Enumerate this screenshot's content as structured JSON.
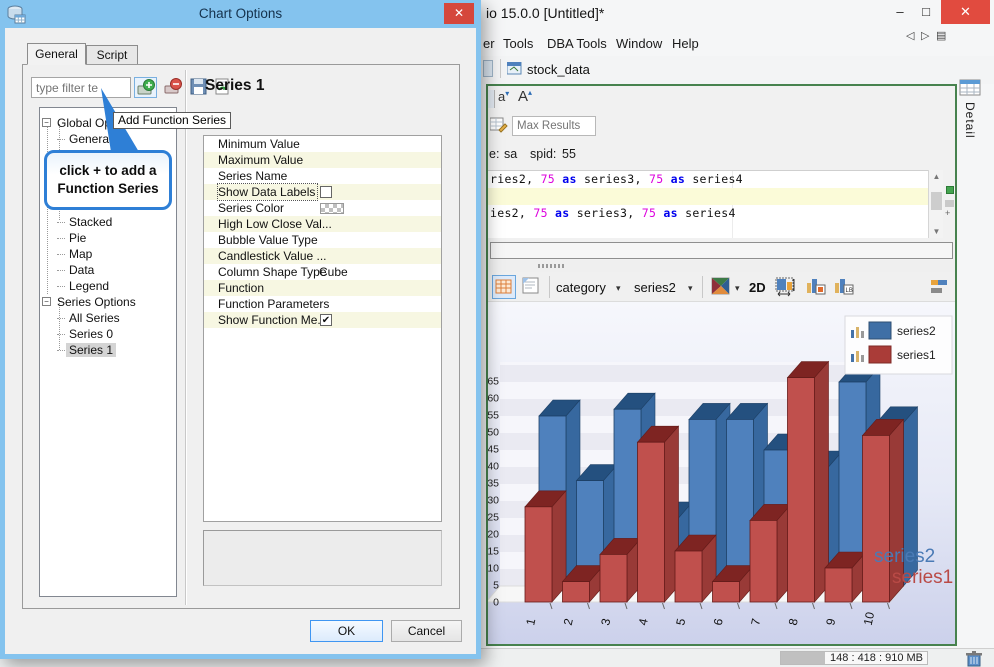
{
  "dialog": {
    "title": "Chart Options",
    "tabs": [
      {
        "label": "General",
        "active": true
      },
      {
        "label": "Script",
        "active": false
      }
    ],
    "filter_text": "type filter te",
    "tooltip_text": "Add Function Series",
    "callout_line1": "click + to add a",
    "callout_line2": "Function Series",
    "tree": [
      {
        "label": "Global Options",
        "level": 0,
        "expander": true
      },
      {
        "label": "General",
        "level": 1
      },
      {
        "label": "Stacked",
        "level": 1
      },
      {
        "label": "Pie",
        "level": 1
      },
      {
        "label": "Map",
        "level": 1
      },
      {
        "label": "Data",
        "level": 1
      },
      {
        "label": "Legend",
        "level": 1
      },
      {
        "label": "Series Options",
        "level": 0,
        "expander": true
      },
      {
        "label": "All Series",
        "level": 1
      },
      {
        "label": "Series 0",
        "level": 1
      },
      {
        "label": "Series 1",
        "level": 1,
        "selected": true
      }
    ],
    "panel_heading": "Series 1",
    "properties": [
      {
        "label": "Minimum Value",
        "value": "",
        "control": "text"
      },
      {
        "label": "Maximum Value",
        "value": "",
        "control": "text"
      },
      {
        "label": "Series Name",
        "value": "",
        "control": "text"
      },
      {
        "label": "Show Data Labels",
        "control": "checkbox",
        "checked": false,
        "focused": true
      },
      {
        "label": "Series Color",
        "control": "swatch"
      },
      {
        "label": "High Low Close Val...",
        "value": "",
        "control": "text"
      },
      {
        "label": "Bubble Value Type",
        "value": "",
        "control": "text"
      },
      {
        "label": "Candlestick Value ...",
        "value": "",
        "control": "text"
      },
      {
        "label": "Column Shape Type",
        "value": "Cube",
        "control": "text"
      },
      {
        "label": "Function",
        "value": "",
        "control": "text"
      },
      {
        "label": "Function Parameters",
        "value": "",
        "control": "text"
      },
      {
        "label": "Show Function Me...",
        "control": "checkbox",
        "checked": true
      }
    ],
    "ok_label": "OK",
    "cancel_label": "Cancel"
  },
  "app": {
    "title_fragment": "io 15.0.0 [Untitled]*",
    "menu_items": [
      "er",
      "Tools",
      "DBA Tools",
      "Window",
      "Help"
    ],
    "document_tab": "stock_data",
    "detail_tab_label": "Detail",
    "editor": {
      "max_results_placeholder": "Max Results",
      "session_fragment": "e:",
      "session_user": "sa",
      "spid_label": "spid:",
      "spid_value": "55",
      "sql_lines": [
        {
          "highlight": false,
          "tokens": [
            [
              "ries2, ",
              "p"
            ],
            [
              "75",
              "n"
            ],
            [
              " ",
              "p"
            ],
            [
              "as",
              "k"
            ],
            [
              " series3, ",
              "p"
            ],
            [
              "75",
              "n"
            ],
            [
              " ",
              "p"
            ],
            [
              "as",
              "k"
            ],
            [
              " series4",
              "p"
            ]
          ]
        },
        {
          "highlight": true,
          "tokens": []
        },
        {
          "highlight": false,
          "tokens": [
            [
              "ies2, ",
              "p"
            ],
            [
              "75",
              "n"
            ],
            [
              " ",
              "p"
            ],
            [
              "as",
              "k"
            ],
            [
              " series3, ",
              "p"
            ],
            [
              "75",
              "n"
            ],
            [
              " ",
              "p"
            ],
            [
              "as",
              "k"
            ],
            [
              " series4",
              "p"
            ]
          ]
        }
      ]
    },
    "chart_toolbar": {
      "category_label": "category",
      "series_label": "series2",
      "mode_label": "2D"
    },
    "status": {
      "memory_text": "148 : 418 : 910 MB"
    }
  },
  "chart_data": {
    "type": "bar",
    "projection": "3d",
    "categories": [
      "1",
      "2",
      "3",
      "4",
      "5",
      "6",
      "7",
      "8",
      "9",
      "10"
    ],
    "series": [
      {
        "name": "series2",
        "color": "#4f81bd",
        "values": [
          50,
          31,
          52,
          20,
          49,
          49,
          40,
          35,
          60,
          48
        ]
      },
      {
        "name": "series1",
        "color": "#c0504d",
        "values": [
          28,
          6,
          14,
          47,
          15,
          6,
          24,
          66,
          10,
          49
        ]
      }
    ],
    "ylim": [
      0,
      65
    ],
    "ytick_step": 5,
    "grid": true,
    "legend": [
      "series2",
      "series1"
    ],
    "legend_position": "top-right",
    "row_labels": [
      {
        "text": "series2",
        "color": "#4a7ab5"
      },
      {
        "text": "series1",
        "color": "#b94a46"
      }
    ]
  }
}
